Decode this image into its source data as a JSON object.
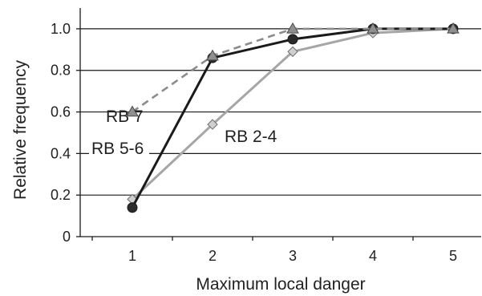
{
  "chart_data": {
    "type": "line",
    "title": "",
    "xlabel": "Maximum local danger",
    "ylabel": "Relative frequency",
    "x": [
      1,
      2,
      3,
      4,
      5
    ],
    "x_tick_labels": [
      "1",
      "2",
      "3",
      "4",
      "5"
    ],
    "y_tick_labels": [
      "0",
      "0.2",
      "0.4",
      "0.6",
      "0.8",
      "1.0"
    ],
    "xlim": [
      0.35,
      5.35
    ],
    "ylim": [
      0,
      1.1
    ],
    "grid": "horizontal",
    "legend": "none",
    "series": [
      {
        "name": "RB 2-4",
        "values": [
          0.18,
          0.54,
          0.89,
          0.98,
          1.0
        ],
        "color": "#a6a6a6",
        "line": "solid",
        "marker": "diamond",
        "marker_color": "#cfcfcf"
      },
      {
        "name": "RB 5-6",
        "values": [
          0.14,
          0.86,
          0.95,
          1.0,
          1.0
        ],
        "color": "#1a1a1a",
        "line": "solid",
        "marker": "circle",
        "marker_color": "#2b2b2b"
      },
      {
        "name": "RB 7",
        "values": [
          0.6,
          0.87,
          1.0,
          1.0,
          1.0
        ],
        "color": "#8c8c8c",
        "line": "dashed",
        "marker": "triangle",
        "marker_color": "#8f8f8f"
      }
    ]
  }
}
